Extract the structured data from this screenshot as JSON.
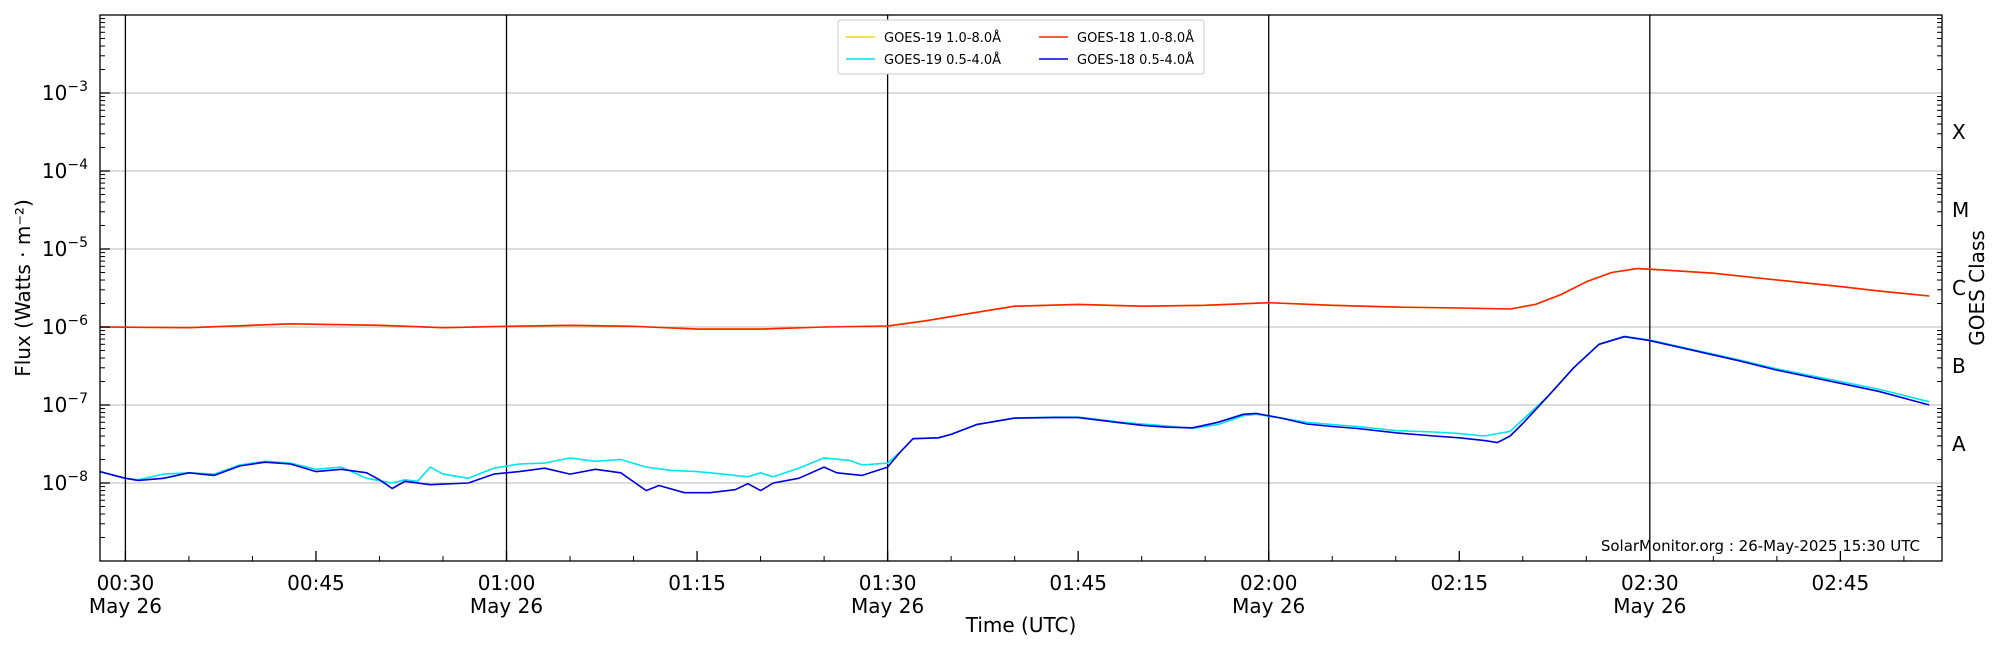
{
  "chart_data": {
    "type": "line",
    "xlabel": "Time (UTC)",
    "ylabel": "Flux (Watts · m⁻²)",
    "y2label": "GOES Class",
    "yscale": "log",
    "ylim": [
      1e-09,
      0.01
    ],
    "xlim": [
      "00:28",
      "02:53"
    ],
    "x_ticks": [
      {
        "time": "00:30",
        "label": "00:30",
        "sublabel": "May 26",
        "vline": true
      },
      {
        "time": "00:45",
        "label": "00:45",
        "sublabel": "",
        "vline": false
      },
      {
        "time": "01:00",
        "label": "01:00",
        "sublabel": "May 26",
        "vline": true
      },
      {
        "time": "01:15",
        "label": "01:15",
        "sublabel": "",
        "vline": false
      },
      {
        "time": "01:30",
        "label": "01:30",
        "sublabel": "May 26",
        "vline": true
      },
      {
        "time": "01:45",
        "label": "01:45",
        "sublabel": "",
        "vline": false
      },
      {
        "time": "02:00",
        "label": "02:00",
        "sublabel": "May 26",
        "vline": true
      },
      {
        "time": "02:15",
        "label": "02:15",
        "sublabel": "",
        "vline": false
      },
      {
        "time": "02:30",
        "label": "02:30",
        "sublabel": "May 26",
        "vline": true
      },
      {
        "time": "02:45",
        "label": "02:45",
        "sublabel": "",
        "vline": false
      }
    ],
    "y_ticks": [
      {
        "exp": -8,
        "base": "10",
        "sup": "−8"
      },
      {
        "exp": -7,
        "base": "10",
        "sup": "−7"
      },
      {
        "exp": -6,
        "base": "10",
        "sup": "−6"
      },
      {
        "exp": -5,
        "base": "10",
        "sup": "−5"
      },
      {
        "exp": -4,
        "base": "10",
        "sup": "−4"
      },
      {
        "exp": -3,
        "base": "10",
        "sup": "−3"
      }
    ],
    "grid": "horizontal",
    "goes_classes": [
      {
        "label": "A",
        "exp": -7.5
      },
      {
        "label": "B",
        "exp": -6.5
      },
      {
        "label": "C",
        "exp": -5.5
      },
      {
        "label": "M",
        "exp": -4.5
      },
      {
        "label": "X",
        "exp": -3.5
      }
    ],
    "legend": {
      "placement": "top-center",
      "entries": [
        {
          "label": "GOES-19 1.0-8.0Å",
          "color": "#ffd700"
        },
        {
          "label": "GOES-19 0.5-4.0Å",
          "color": "#00e5ee"
        },
        {
          "label": "GOES-18 1.0-8.0Å",
          "color": "#ff2200"
        },
        {
          "label": "GOES-18 0.5-4.0Å",
          "color": "#0000dd"
        }
      ]
    },
    "credit": "SolarMonitor.org : 26-May-2025 15:30 UTC",
    "series": [
      {
        "name": "GOES-19 1.0-8.0Å",
        "color": "#ffd700",
        "points": [
          [
            "00:28",
            1e-06
          ],
          [
            "00:35",
            9.8e-07
          ],
          [
            "00:40",
            1.05e-06
          ],
          [
            "00:43",
            1.1e-06
          ],
          [
            "00:50",
            1.05e-06
          ],
          [
            "00:55",
            9.8e-07
          ],
          [
            "01:00",
            1.02e-06
          ],
          [
            "01:05",
            1.05e-06
          ],
          [
            "01:10",
            1.02e-06
          ],
          [
            "01:15",
            9.4e-07
          ],
          [
            "01:20",
            9.4e-07
          ],
          [
            "01:25",
            1e-06
          ],
          [
            "01:30",
            1.03e-06
          ],
          [
            "01:33",
            1.2e-06
          ],
          [
            "01:36",
            1.45e-06
          ],
          [
            "01:40",
            1.85e-06
          ],
          [
            "01:45",
            1.95e-06
          ],
          [
            "01:50",
            1.85e-06
          ],
          [
            "01:55",
            1.9e-06
          ],
          [
            "02:00",
            2.05e-06
          ],
          [
            "02:05",
            1.9e-06
          ],
          [
            "02:10",
            1.8e-06
          ],
          [
            "02:15",
            1.75e-06
          ],
          [
            "02:19",
            1.7e-06
          ],
          [
            "02:21",
            1.95e-06
          ],
          [
            "02:23",
            2.6e-06
          ],
          [
            "02:25",
            3.8e-06
          ],
          [
            "02:27",
            5e-06
          ],
          [
            "02:29",
            5.6e-06
          ],
          [
            "02:31",
            5.4e-06
          ],
          [
            "02:35",
            4.9e-06
          ],
          [
            "02:40",
            4e-06
          ],
          [
            "02:45",
            3.3e-06
          ],
          [
            "02:48",
            2.9e-06
          ],
          [
            "02:52",
            2.5e-06
          ]
        ]
      },
      {
        "name": "GOES-18 1.0-8.0Å",
        "color": "#ff2200",
        "points": [
          [
            "00:28",
            1e-06
          ],
          [
            "00:35",
            9.8e-07
          ],
          [
            "00:40",
            1.05e-06
          ],
          [
            "00:43",
            1.1e-06
          ],
          [
            "00:50",
            1.05e-06
          ],
          [
            "00:55",
            9.8e-07
          ],
          [
            "01:00",
            1.02e-06
          ],
          [
            "01:05",
            1.05e-06
          ],
          [
            "01:10",
            1.02e-06
          ],
          [
            "01:15",
            9.4e-07
          ],
          [
            "01:20",
            9.4e-07
          ],
          [
            "01:25",
            1e-06
          ],
          [
            "01:30",
            1.03e-06
          ],
          [
            "01:33",
            1.2e-06
          ],
          [
            "01:36",
            1.45e-06
          ],
          [
            "01:40",
            1.85e-06
          ],
          [
            "01:45",
            1.95e-06
          ],
          [
            "01:50",
            1.85e-06
          ],
          [
            "01:55",
            1.9e-06
          ],
          [
            "02:00",
            2.05e-06
          ],
          [
            "02:05",
            1.9e-06
          ],
          [
            "02:10",
            1.8e-06
          ],
          [
            "02:15",
            1.75e-06
          ],
          [
            "02:19",
            1.7e-06
          ],
          [
            "02:21",
            1.95e-06
          ],
          [
            "02:23",
            2.6e-06
          ],
          [
            "02:25",
            3.8e-06
          ],
          [
            "02:27",
            5e-06
          ],
          [
            "02:29",
            5.6e-06
          ],
          [
            "02:31",
            5.4e-06
          ],
          [
            "02:35",
            4.9e-06
          ],
          [
            "02:40",
            4e-06
          ],
          [
            "02:45",
            3.3e-06
          ],
          [
            "02:48",
            2.9e-06
          ],
          [
            "02:52",
            2.5e-06
          ]
        ]
      },
      {
        "name": "GOES-19 0.5-4.0Å",
        "color": "#00e5ee",
        "points": [
          [
            "00:28",
            1.4e-08
          ],
          [
            "00:30",
            1.15e-08
          ],
          [
            "00:31",
            1.1e-08
          ],
          [
            "00:33",
            1.3e-08
          ],
          [
            "00:35",
            1.35e-08
          ],
          [
            "00:37",
            1.3e-08
          ],
          [
            "00:39",
            1.7e-08
          ],
          [
            "00:41",
            1.9e-08
          ],
          [
            "00:43",
            1.8e-08
          ],
          [
            "00:45",
            1.5e-08
          ],
          [
            "00:47",
            1.6e-08
          ],
          [
            "00:49",
            1.15e-08
          ],
          [
            "00:51",
            1e-08
          ],
          [
            "00:52",
            1.1e-08
          ],
          [
            "00:53",
            1.05e-08
          ],
          [
            "00:54",
            1.6e-08
          ],
          [
            "00:55",
            1.3e-08
          ],
          [
            "00:57",
            1.15e-08
          ],
          [
            "00:59",
            1.55e-08
          ],
          [
            "01:01",
            1.75e-08
          ],
          [
            "01:03",
            1.8e-08
          ],
          [
            "01:05",
            2.1e-08
          ],
          [
            "01:07",
            1.9e-08
          ],
          [
            "01:09",
            2e-08
          ],
          [
            "01:11",
            1.6e-08
          ],
          [
            "01:13",
            1.45e-08
          ],
          [
            "01:15",
            1.4e-08
          ],
          [
            "01:17",
            1.3e-08
          ],
          [
            "01:19",
            1.2e-08
          ],
          [
            "01:20",
            1.35e-08
          ],
          [
            "01:21",
            1.2e-08
          ],
          [
            "01:23",
            1.55e-08
          ],
          [
            "01:25",
            2.1e-08
          ],
          [
            "01:27",
            1.95e-08
          ],
          [
            "01:28",
            1.7e-08
          ],
          [
            "01:30",
            1.8e-08
          ],
          [
            "01:31",
            2.5e-08
          ],
          [
            "01:32",
            3.7e-08
          ],
          [
            "01:34",
            3.8e-08
          ],
          [
            "01:35",
            4.2e-08
          ],
          [
            "01:37",
            5.6e-08
          ],
          [
            "01:40",
            6.8e-08
          ],
          [
            "01:43",
            7e-08
          ],
          [
            "01:45",
            7e-08
          ],
          [
            "01:48",
            6.1e-08
          ],
          [
            "01:50",
            5.7e-08
          ],
          [
            "01:52",
            5.4e-08
          ],
          [
            "01:54",
            5e-08
          ],
          [
            "01:56",
            5.6e-08
          ],
          [
            "01:58",
            7.3e-08
          ],
          [
            "01:59",
            7.6e-08
          ],
          [
            "02:01",
            6.8e-08
          ],
          [
            "02:03",
            6e-08
          ],
          [
            "02:05",
            5.6e-08
          ],
          [
            "02:07",
            5.3e-08
          ],
          [
            "02:10",
            4.7e-08
          ],
          [
            "02:13",
            4.5e-08
          ],
          [
            "02:15",
            4.3e-08
          ],
          [
            "02:17",
            4e-08
          ],
          [
            "02:19",
            4.6e-08
          ],
          [
            "02:20",
            6.5e-08
          ],
          [
            "02:22",
            1.3e-07
          ],
          [
            "02:24",
            3e-07
          ],
          [
            "02:26",
            6e-07
          ],
          [
            "02:28",
            7.6e-07
          ],
          [
            "02:30",
            6.8e-07
          ],
          [
            "02:33",
            5.3e-07
          ],
          [
            "02:37",
            3.8e-07
          ],
          [
            "02:40",
            2.9e-07
          ],
          [
            "02:45",
            2e-07
          ],
          [
            "02:48",
            1.6e-07
          ],
          [
            "02:52",
            1.1e-07
          ]
        ]
      },
      {
        "name": "GOES-18 0.5-4.0Å",
        "color": "#0000dd",
        "points": [
          [
            "00:28",
            1.4e-08
          ],
          [
            "00:30",
            1.15e-08
          ],
          [
            "00:31",
            1.08e-08
          ],
          [
            "00:33",
            1.15e-08
          ],
          [
            "00:35",
            1.35e-08
          ],
          [
            "00:37",
            1.25e-08
          ],
          [
            "00:39",
            1.65e-08
          ],
          [
            "00:41",
            1.85e-08
          ],
          [
            "00:43",
            1.75e-08
          ],
          [
            "00:45",
            1.4e-08
          ],
          [
            "00:47",
            1.5e-08
          ],
          [
            "00:49",
            1.35e-08
          ],
          [
            "00:50",
            1.1e-08
          ],
          [
            "00:51",
            8.5e-09
          ],
          [
            "00:52",
            1.05e-08
          ],
          [
            "00:54",
            9.5e-09
          ],
          [
            "00:57",
            1e-08
          ],
          [
            "00:59",
            1.3e-08
          ],
          [
            "01:01",
            1.4e-08
          ],
          [
            "01:03",
            1.55e-08
          ],
          [
            "01:05",
            1.3e-08
          ],
          [
            "01:07",
            1.5e-08
          ],
          [
            "01:09",
            1.35e-08
          ],
          [
            "01:11",
            8e-09
          ],
          [
            "01:12",
            9.3e-09
          ],
          [
            "01:14",
            7.5e-09
          ],
          [
            "01:16",
            7.5e-09
          ],
          [
            "01:18",
            8.2e-09
          ],
          [
            "01:19",
            9.8e-09
          ],
          [
            "01:20",
            8e-09
          ],
          [
            "01:21",
            1e-08
          ],
          [
            "01:23",
            1.15e-08
          ],
          [
            "01:25",
            1.6e-08
          ],
          [
            "01:26",
            1.35e-08
          ],
          [
            "01:28",
            1.25e-08
          ],
          [
            "01:30",
            1.6e-08
          ],
          [
            "01:31",
            2.5e-08
          ],
          [
            "01:32",
            3.7e-08
          ],
          [
            "01:34",
            3.8e-08
          ],
          [
            "01:35",
            4.2e-08
          ],
          [
            "01:37",
            5.6e-08
          ],
          [
            "01:40",
            6.8e-08
          ],
          [
            "01:43",
            6.9e-08
          ],
          [
            "01:45",
            6.9e-08
          ],
          [
            "01:48",
            6e-08
          ],
          [
            "01:50",
            5.5e-08
          ],
          [
            "01:52",
            5.2e-08
          ],
          [
            "01:54",
            5.1e-08
          ],
          [
            "01:56",
            6e-08
          ],
          [
            "01:58",
            7.6e-08
          ],
          [
            "01:59",
            7.8e-08
          ],
          [
            "02:01",
            6.8e-08
          ],
          [
            "02:03",
            5.7e-08
          ],
          [
            "02:05",
            5.3e-08
          ],
          [
            "02:07",
            5e-08
          ],
          [
            "02:10",
            4.4e-08
          ],
          [
            "02:13",
            4e-08
          ],
          [
            "02:15",
            3.8e-08
          ],
          [
            "02:17",
            3.5e-08
          ],
          [
            "02:18",
            3.3e-08
          ],
          [
            "02:19",
            4e-08
          ],
          [
            "02:20",
            5.8e-08
          ],
          [
            "02:22",
            1.3e-07
          ],
          [
            "02:24",
            3e-07
          ],
          [
            "02:26",
            6e-07
          ],
          [
            "02:28",
            7.5e-07
          ],
          [
            "02:30",
            6.7e-07
          ],
          [
            "02:33",
            5.2e-07
          ],
          [
            "02:37",
            3.7e-07
          ],
          [
            "02:40",
            2.8e-07
          ],
          [
            "02:45",
            1.9e-07
          ],
          [
            "02:48",
            1.5e-07
          ],
          [
            "02:52",
            1e-07
          ]
        ]
      }
    ]
  }
}
